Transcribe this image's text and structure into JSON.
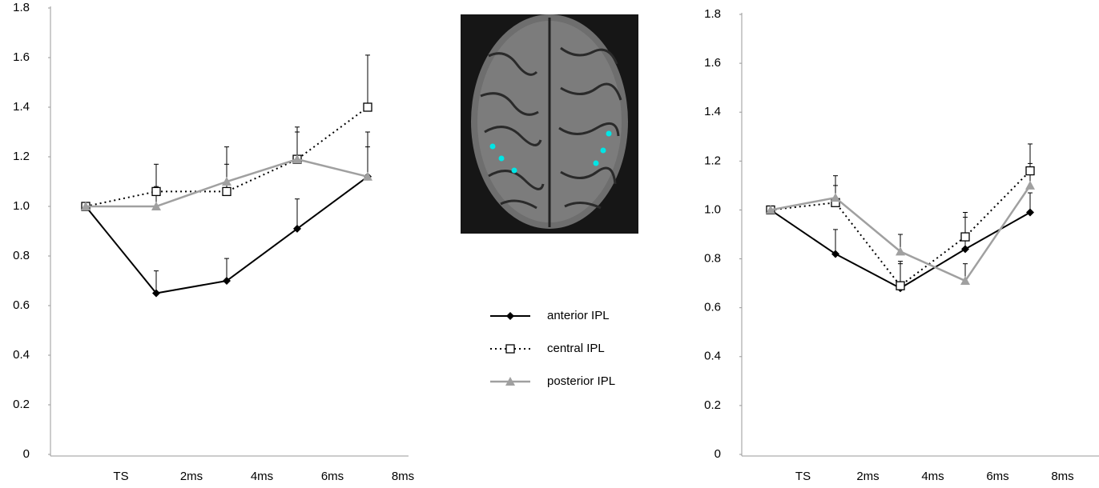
{
  "chart_data": [
    {
      "type": "line",
      "categories": [
        "TS",
        "2ms",
        "4ms",
        "6ms",
        "8ms"
      ],
      "ylim": [
        0,
        1.8
      ],
      "yticks": [
        0,
        0.2,
        0.4,
        0.6,
        0.8,
        {
          "value": 1,
          "label": "1.0"
        },
        1.2,
        1.4,
        1.6,
        1.8
      ],
      "series": [
        {
          "name": "anterior IPL",
          "color": "#000000",
          "line_style": "solid",
          "marker": "diamond",
          "values": [
            1.0,
            0.65,
            0.7,
            0.91,
            1.12
          ],
          "errors": [
            null,
            0.09,
            0.09,
            0.12,
            0.12
          ]
        },
        {
          "name": "central IPL",
          "color": "#000000",
          "line_style": "dotted",
          "marker": "square",
          "values": [
            1.0,
            1.06,
            1.06,
            1.19,
            1.4
          ],
          "errors": [
            null,
            0.11,
            0.11,
            0.13,
            0.21
          ]
        },
        {
          "name": "posterior IPL",
          "color": "#a0a0a0",
          "line_style": "solid",
          "marker": "triangle",
          "values": [
            1.0,
            1.0,
            1.1,
            1.19,
            1.12
          ],
          "errors": [
            null,
            0.08,
            0.14,
            0.11,
            0.18
          ]
        }
      ]
    },
    {
      "type": "line",
      "categories": [
        "TS",
        "2ms",
        "4ms",
        "6ms",
        "8ms"
      ],
      "ylim": [
        0,
        1.8
      ],
      "yticks": [
        0,
        0.2,
        0.4,
        0.6,
        0.8,
        {
          "value": 1,
          "label": "1.0"
        },
        1.2,
        1.4,
        1.6,
        1.8
      ],
      "series": [
        {
          "color": "#000000",
          "line_style": "solid",
          "marker": "diamond",
          "values": [
            1.0,
            0.82,
            0.68,
            0.84,
            0.99
          ],
          "errors": [
            null,
            0.1,
            0.1,
            0.13,
            0.08
          ]
        },
        {
          "color": "#000000",
          "line_style": "dotted",
          "marker": "square",
          "values": [
            1.0,
            1.03,
            0.69,
            0.89,
            1.16
          ],
          "errors": [
            null,
            0.07,
            0.1,
            0.1,
            0.11
          ]
        },
        {
          "color": "#a0a0a0",
          "line_style": "solid",
          "marker": "triangle",
          "values": [
            1.0,
            1.05,
            0.83,
            0.71,
            1.1
          ],
          "errors": [
            null,
            0.09,
            0.07,
            0.07,
            0.09
          ]
        }
      ]
    }
  ]
}
